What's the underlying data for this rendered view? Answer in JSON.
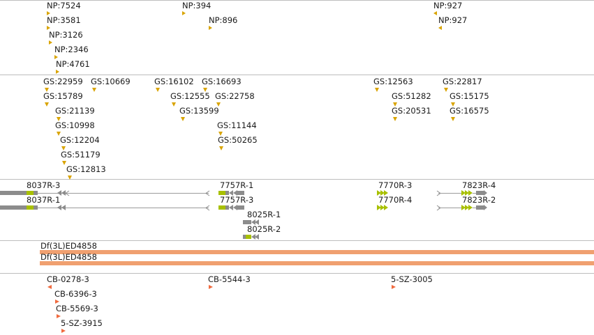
{
  "colors": {
    "np_marker": "#d9a400",
    "gs_marker": "#d9a400",
    "transcript_gray": "#8c8c8c",
    "transcript_green": "#a8c000",
    "deficiency": "#f0a070",
    "cb_marker": "#f06a3e",
    "separator": "#bdbdbd"
  },
  "np_track": {
    "labels": [
      "NP:7524",
      "NP:3581",
      "NP:3126",
      "NP:2346",
      "NP:4761",
      "NP:394",
      "NP:896",
      "NP:927",
      "NP:927"
    ]
  },
  "gs_track": {
    "labels": [
      "GS:22959",
      "GS:10669",
      "GS:15789",
      "GS:21139",
      "GS:10998",
      "GS:12204",
      "GS:51179",
      "GS:12813",
      "GS:16102",
      "GS:16693",
      "GS:12555",
      "GS:22758",
      "GS:13599",
      "GS:11144",
      "GS:50265",
      "GS:12563",
      "GS:22817",
      "GS:51282",
      "GS:15175",
      "GS:20531",
      "GS:16575"
    ]
  },
  "gene_track": {
    "labels": [
      "8037R-3",
      "8037R-1",
      "7757R-1",
      "7757R-3",
      "8025R-1",
      "8025R-2",
      "7770R-3",
      "7770R-4",
      "7823R-4",
      "7823R-2"
    ]
  },
  "deficiency_track": {
    "labels": [
      "Df(3L)ED4858",
      "Df(3L)ED4858"
    ]
  },
  "cb_track": {
    "labels": [
      "CB-0278-3",
      "CB-6396-3",
      "CB-5569-3",
      "5-SZ-3915",
      "CB-5544-3",
      "5-SZ-3005"
    ]
  }
}
